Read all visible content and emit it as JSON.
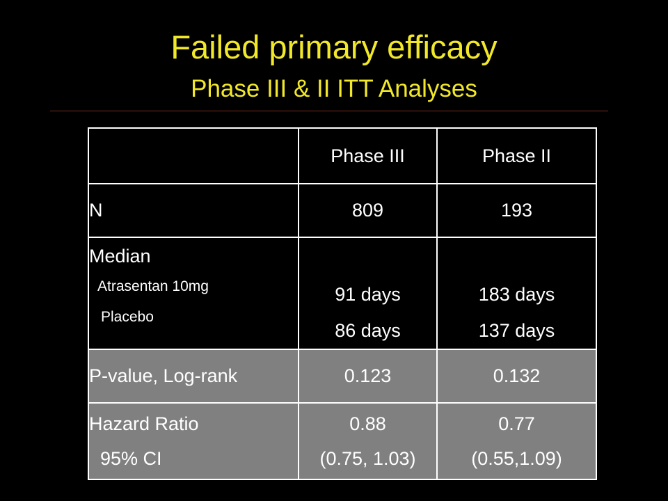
{
  "slide": {
    "title": "Failed primary efficacy",
    "subtitle": "Phase III & II  ITT Analyses"
  },
  "table": {
    "headers": [
      "",
      "Phase III",
      "Phase II"
    ],
    "rows": {
      "n": {
        "label": "N",
        "phase3": "809",
        "phase2": "193"
      },
      "median": {
        "label": "Median",
        "sub1": "Atrasentan 10mg",
        "sub2": "Placebo",
        "phase3": [
          "91 days",
          "86 days"
        ],
        "phase2": [
          "183 days",
          "137 days"
        ]
      },
      "pvalue": {
        "label": "P-value, Log-rank",
        "phase3": "0.123",
        "phase2": "0.132"
      },
      "hazard": {
        "label": "Hazard Ratio",
        "sublabel": "95% CI",
        "phase3": [
          "0.88",
          "(0.75, 1.03)"
        ],
        "phase2": [
          "0.77",
          "(0.55,1.09)"
        ]
      }
    }
  },
  "colors": {
    "background": "#000000",
    "title": "#f2e82a",
    "rule": "#7a2a1e",
    "shaded_cell": "#808080",
    "text": "#ffffff"
  }
}
